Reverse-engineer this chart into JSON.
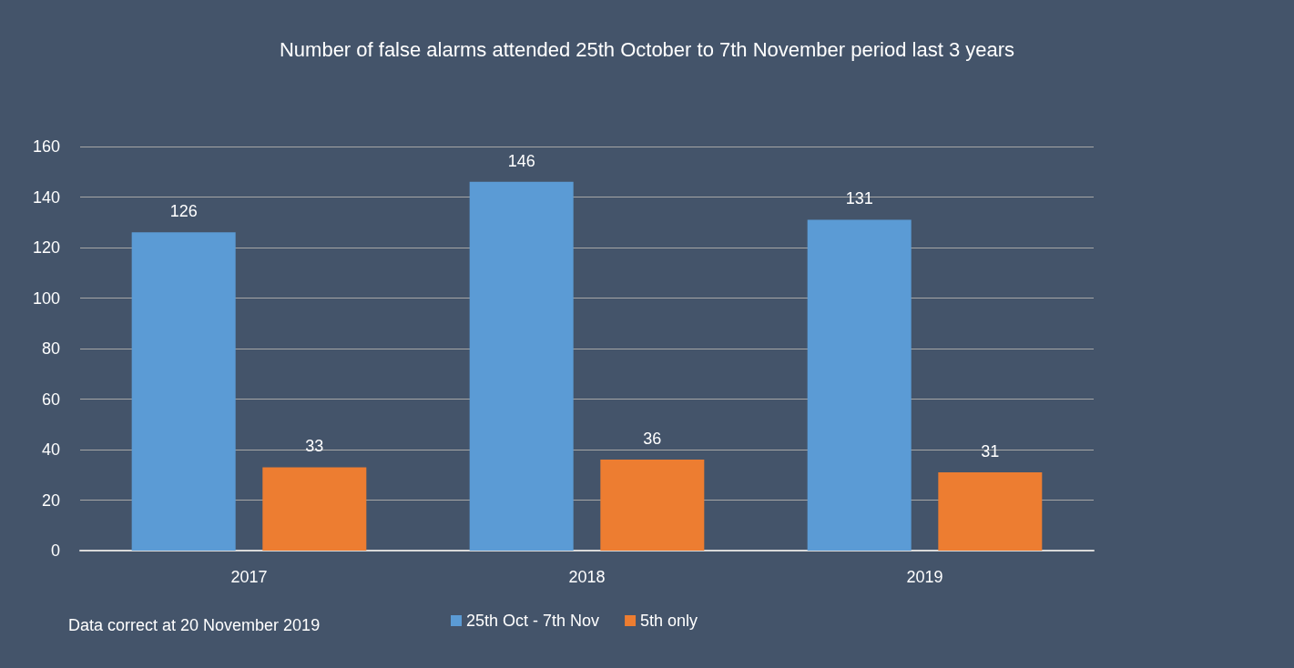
{
  "chart_data": {
    "type": "bar",
    "title": "Number of false alarms attended 25th October to 7th November period last 3 years",
    "categories": [
      "2017",
      "2018",
      "2019"
    ],
    "series": [
      {
        "name": "25th Oct - 7th Nov",
        "color": "#5b9bd5",
        "values": [
          126,
          146,
          131
        ]
      },
      {
        "name": "5th only",
        "color": "#ed7d31",
        "values": [
          33,
          36,
          31
        ]
      }
    ],
    "ylim": [
      0,
      160
    ],
    "yticks": [
      0,
      20,
      40,
      60,
      80,
      100,
      120,
      140,
      160
    ],
    "grid": "y",
    "legend": "bottom",
    "data_labels": true,
    "annotations": [
      "Data correct at 20 November 2019"
    ]
  }
}
